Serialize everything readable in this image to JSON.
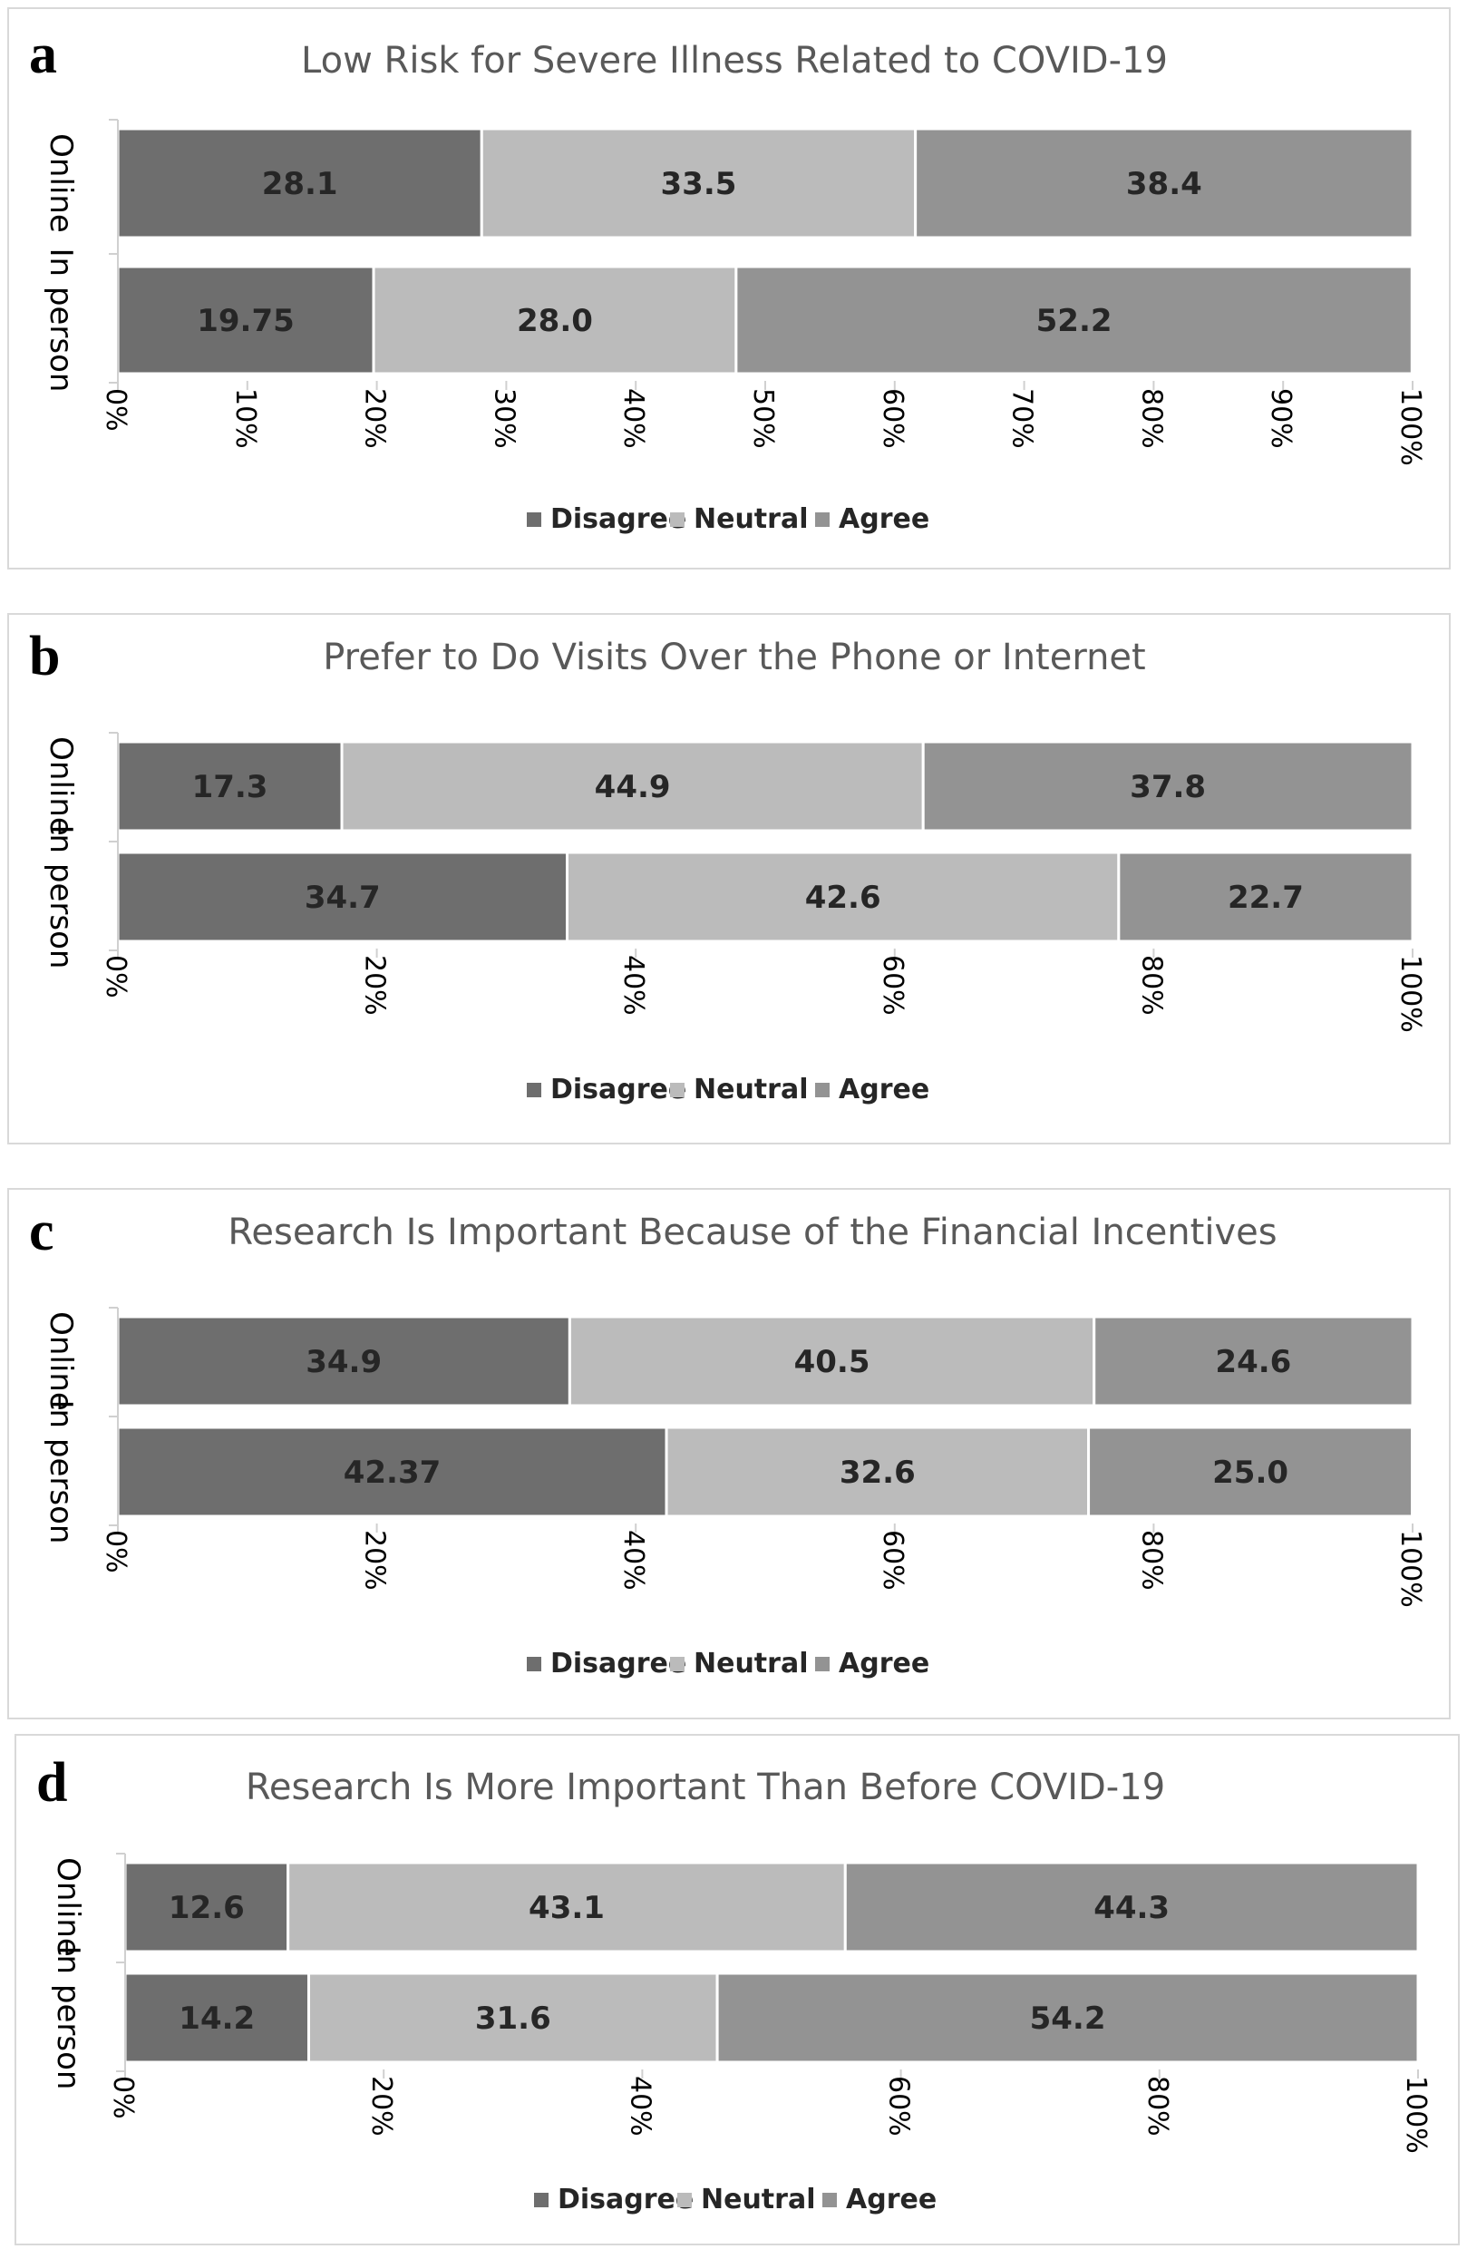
{
  "colors": {
    "disagree": "#6e6e6e",
    "neutral": "#bbbbbb",
    "agree": "#939393",
    "axis": "#d0d0d0"
  },
  "chart_data": [
    {
      "type": "bar",
      "orientation": "horizontal",
      "stacked": "percent",
      "panel_label": "a",
      "title": "Low Risk for Severe Illness Related to COVID-19",
      "categories": [
        "Online",
        "In person"
      ],
      "series": [
        {
          "name": "Disagree",
          "values": [
            28.1,
            19.75
          ],
          "labels": [
            "28.1",
            "19.75"
          ]
        },
        {
          "name": "Neutral",
          "values": [
            33.5,
            28.0
          ],
          "labels": [
            "33.5",
            "28.0"
          ]
        },
        {
          "name": "Agree",
          "values": [
            38.4,
            52.2
          ],
          "labels": [
            "38.4",
            "52.2"
          ]
        }
      ],
      "xlim": [
        0,
        100
      ],
      "xticks": [
        "0%",
        "10%",
        "20%",
        "30%",
        "40%",
        "50%",
        "60%",
        "70%",
        "80%",
        "90%",
        "100%"
      ],
      "legend": "bottom",
      "grid": false
    },
    {
      "type": "bar",
      "orientation": "horizontal",
      "stacked": "percent",
      "panel_label": "b",
      "title": "Prefer to Do Visits Over the Phone or Internet",
      "categories": [
        "Online",
        "In person"
      ],
      "series": [
        {
          "name": "Disagree",
          "values": [
            17.3,
            34.7
          ],
          "labels": [
            "17.3",
            "34.7"
          ]
        },
        {
          "name": "Neutral",
          "values": [
            44.9,
            42.6
          ],
          "labels": [
            "44.9",
            "42.6"
          ]
        },
        {
          "name": "Agree",
          "values": [
            37.8,
            22.7
          ],
          "labels": [
            "37.8",
            "22.7"
          ]
        }
      ],
      "xlim": [
        0,
        100
      ],
      "xticks": [
        "0%",
        "20%",
        "40%",
        "60%",
        "80%",
        "100%"
      ],
      "legend": "bottom",
      "grid": false
    },
    {
      "type": "bar",
      "orientation": "horizontal",
      "stacked": "percent",
      "panel_label": "c",
      "title": "Research Is Important Because of the Financial Incentives",
      "categories": [
        "Online",
        "In person"
      ],
      "series": [
        {
          "name": "Disagree",
          "values": [
            34.9,
            42.37
          ],
          "labels": [
            "34.9",
            "42.37"
          ]
        },
        {
          "name": "Neutral",
          "values": [
            40.5,
            32.6
          ],
          "labels": [
            "40.5",
            "32.6"
          ]
        },
        {
          "name": "Agree",
          "values": [
            24.6,
            25.0
          ],
          "labels": [
            "24.6",
            "25.0"
          ]
        }
      ],
      "xlim": [
        0,
        100
      ],
      "xticks": [
        "0%",
        "20%",
        "40%",
        "60%",
        "80%",
        "100%"
      ],
      "legend": "bottom",
      "grid": false
    },
    {
      "type": "bar",
      "orientation": "horizontal",
      "stacked": "percent",
      "panel_label": "d",
      "title": "Research Is More Important Than Before COVID-19",
      "categories": [
        "Online",
        "In person"
      ],
      "series": [
        {
          "name": "Disagree",
          "values": [
            12.6,
            14.2
          ],
          "labels": [
            "12.6",
            "14.2"
          ]
        },
        {
          "name": "Neutral",
          "values": [
            43.1,
            31.6
          ],
          "labels": [
            "43.1",
            "31.6"
          ]
        },
        {
          "name": "Agree",
          "values": [
            44.3,
            54.2
          ],
          "labels": [
            "44.3",
            "54.2"
          ]
        }
      ],
      "xlim": [
        0,
        100
      ],
      "xticks": [
        "0%",
        "20%",
        "40%",
        "60%",
        "80%",
        "100%"
      ],
      "legend": "bottom",
      "grid": false
    }
  ]
}
